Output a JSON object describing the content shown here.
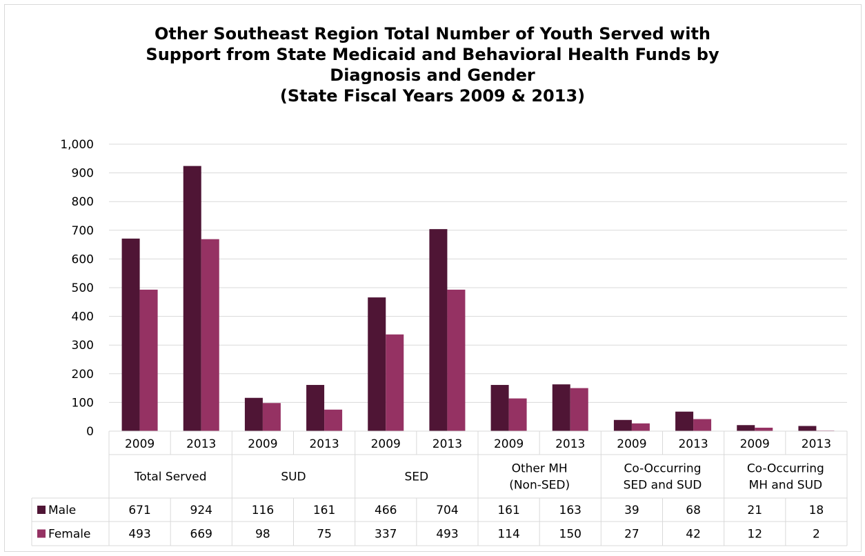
{
  "chart_data": {
    "type": "bar",
    "title_lines": [
      "Other Southeast Region Total Number of Youth Served with",
      "Support from State Medicaid and Behavioral Health Funds by",
      "Diagnosis and Gender",
      "(State Fiscal Years 2009 & 2013)"
    ],
    "groups": [
      {
        "label": [
          "Total Served"
        ],
        "years": [
          "2009",
          "2013"
        ]
      },
      {
        "label": [
          "SUD"
        ],
        "years": [
          "2009",
          "2013"
        ]
      },
      {
        "label": [
          "SED"
        ],
        "years": [
          "2009",
          "2013"
        ]
      },
      {
        "label": [
          "Other MH",
          "(Non-SED)"
        ],
        "years": [
          "2009",
          "2013"
        ]
      },
      {
        "label": [
          "Co-Occurring",
          "SED and SUD"
        ],
        "years": [
          "2009",
          "2013"
        ]
      },
      {
        "label": [
          "Co-Occurring",
          "MH and SUD"
        ],
        "years": [
          "2009",
          "2013"
        ]
      }
    ],
    "series": [
      {
        "name": "Male",
        "color": "#4f1535",
        "values": [
          671,
          924,
          116,
          161,
          466,
          704,
          161,
          163,
          39,
          68,
          21,
          18
        ]
      },
      {
        "name": "Female",
        "color": "#953263",
        "values": [
          493,
          669,
          98,
          75,
          337,
          493,
          114,
          150,
          27,
          42,
          12,
          2
        ]
      }
    ],
    "ylim": [
      0,
      1000
    ],
    "yticks": [
      0,
      100,
      200,
      300,
      400,
      500,
      600,
      700,
      800,
      900,
      1000
    ],
    "ytick_labels": [
      "0",
      "100",
      "200",
      "300",
      "400",
      "500",
      "600",
      "700",
      "800",
      "900",
      "1,000"
    ],
    "grid": true,
    "legend": "data-table",
    "data_table": true
  }
}
